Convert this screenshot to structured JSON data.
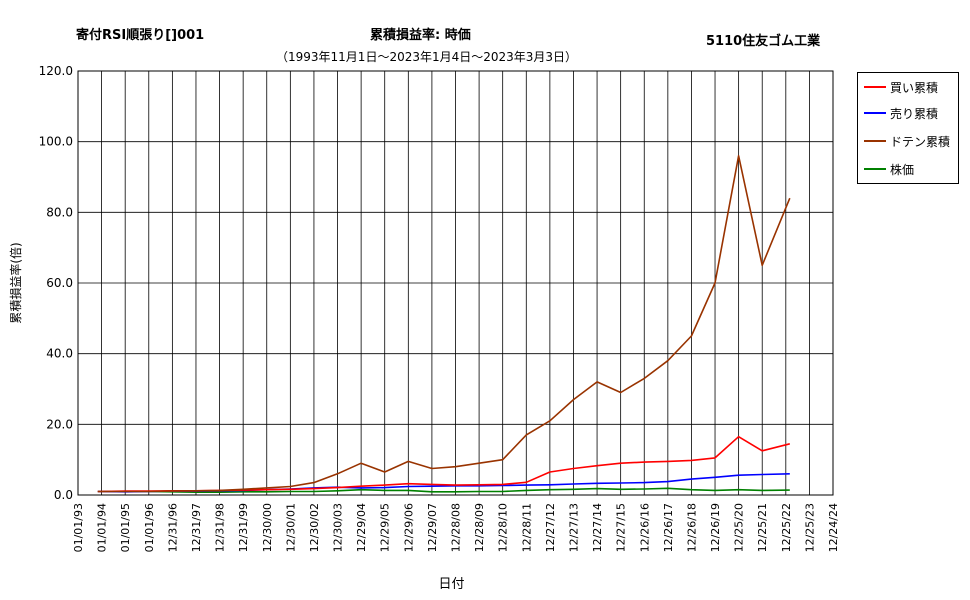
{
  "header": {
    "title_left": "寄付RSI順張り[]001",
    "title_center": "累積損益率:  時価",
    "title_right": "5110住友ゴム工業",
    "subtitle": "（1993年11月1日～2023年1月4日～2023年3月3日）"
  },
  "chart_data": {
    "type": "line",
    "xlabel": "日付",
    "ylabel": "累積損益率(倍)",
    "ylim": [
      0,
      120
    ],
    "yticks": [
      "0.0",
      "20.0",
      "40.0",
      "60.0",
      "80.0",
      "100.0",
      "120.0"
    ],
    "x_tick_labels": [
      "01/01/93",
      "01/01/94",
      "01/01/95",
      "01/01/96",
      "12/31/96",
      "12/31/97",
      "12/31/98",
      "12/31/99",
      "12/30/00",
      "12/30/01",
      "12/30/02",
      "12/30/03",
      "12/29/04",
      "12/29/05",
      "12/29/06",
      "12/29/07",
      "12/28/08",
      "12/28/09",
      "12/28/10",
      "12/28/11",
      "12/27/12",
      "12/27/13",
      "12/27/14",
      "12/27/15",
      "12/26/16",
      "12/26/17",
      "12/26/18",
      "12/26/19",
      "12/25/20",
      "12/25/21",
      "12/25/22",
      "12/25/23",
      "12/24/24"
    ],
    "grid": true,
    "legend_position": "right",
    "x_years": [
      1993.84,
      1995,
      1996,
      1997,
      1998,
      1999,
      2000,
      2001,
      2002,
      2003,
      2004,
      2005,
      2006,
      2007,
      2008,
      2009,
      2010,
      2011,
      2012,
      2013,
      2014,
      2015,
      2016,
      2017,
      2018,
      2019,
      2020,
      2021,
      2022,
      2023.17
    ],
    "series": [
      {
        "name": "買い累積",
        "color": "#ff0000",
        "values": [
          1.0,
          1.1,
          1.1,
          1.2,
          1.2,
          1.3,
          1.4,
          1.5,
          1.6,
          1.8,
          2.1,
          2.5,
          2.8,
          3.2,
          3.0,
          2.8,
          2.9,
          3.0,
          3.6,
          6.5,
          7.5,
          8.3,
          9.0,
          9.3,
          9.5,
          9.8,
          10.5,
          16.5,
          12.5,
          14.5
        ]
      },
      {
        "name": "売り累積",
        "color": "#0000ff",
        "values": [
          1.0,
          0.9,
          1.0,
          1.1,
          1.1,
          1.2,
          1.3,
          1.5,
          1.7,
          2.0,
          2.2,
          2.0,
          2.1,
          2.4,
          2.5,
          2.6,
          2.6,
          2.7,
          2.8,
          2.9,
          3.1,
          3.3,
          3.4,
          3.5,
          3.8,
          4.5,
          5.0,
          5.6,
          5.8,
          6.0
        ]
      },
      {
        "name": "ドテン累積",
        "color": "#993300",
        "values": [
          1.0,
          1.0,
          1.0,
          1.1,
          1.2,
          1.3,
          1.6,
          2.0,
          2.4,
          3.5,
          6.0,
          9.0,
          6.5,
          9.5,
          7.5,
          8.0,
          9.0,
          10.0,
          17.0,
          21.0,
          27.0,
          32.0,
          29.0,
          33.0,
          38.0,
          45.0,
          60.0,
          96.0,
          65.0,
          84.0
        ]
      },
      {
        "name": "株価",
        "color": "#008000",
        "values": [
          1.0,
          1.0,
          1.0,
          0.9,
          0.8,
          0.8,
          0.9,
          0.9,
          1.0,
          1.0,
          1.2,
          1.5,
          1.3,
          1.3,
          0.9,
          0.9,
          1.0,
          1.0,
          1.3,
          1.5,
          1.6,
          1.8,
          1.6,
          1.7,
          1.9,
          1.5,
          1.3,
          1.5,
          1.3,
          1.4
        ]
      }
    ]
  }
}
